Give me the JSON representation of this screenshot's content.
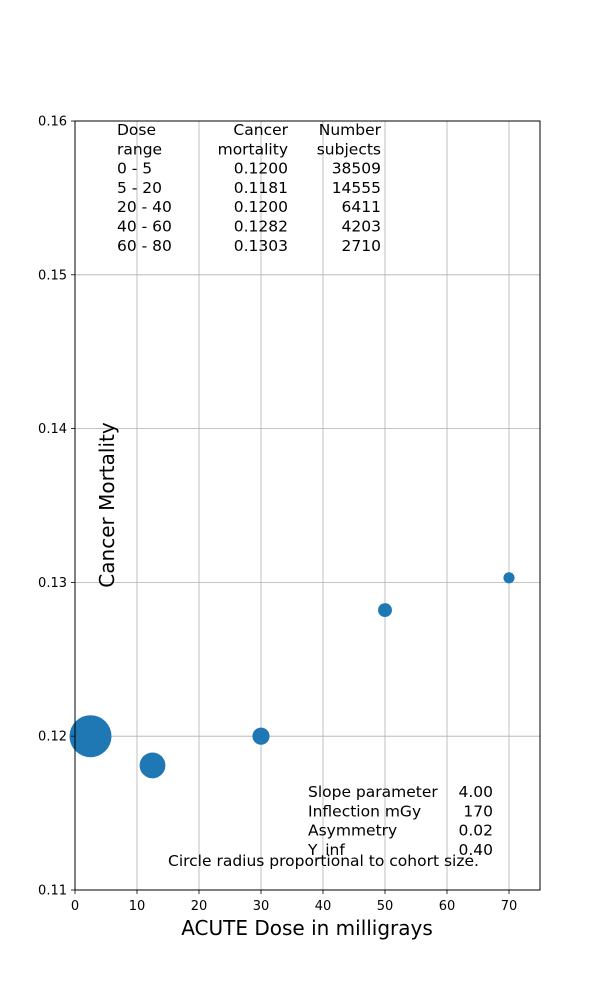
{
  "chart_data": {
    "type": "scatter",
    "title": "",
    "xlabel": "ACUTE Dose in milligrays",
    "ylabel": "Cancer Mortality",
    "xlim": [
      0,
      75
    ],
    "ylim": [
      0.11,
      0.16
    ],
    "xticks": [
      "0",
      "10",
      "20",
      "30",
      "40",
      "50",
      "60",
      "70"
    ],
    "xtick_values": [
      0,
      10,
      20,
      30,
      40,
      50,
      60,
      70
    ],
    "yticks": [
      "0.11",
      "0.12",
      "0.13",
      "0.14",
      "0.15",
      "0.16"
    ],
    "ytick_values": [
      0.11,
      0.12,
      0.13,
      0.14,
      0.15,
      0.16
    ],
    "grid": true,
    "marker_color": "#1f77b4",
    "points": [
      {
        "x": 2.5,
        "y": 0.12,
        "subjects": 38509
      },
      {
        "x": 12.5,
        "y": 0.1181,
        "subjects": 14555
      },
      {
        "x": 30,
        "y": 0.12,
        "subjects": 6411
      },
      {
        "x": 50,
        "y": 0.1282,
        "subjects": 4203
      },
      {
        "x": 70,
        "y": 0.1303,
        "subjects": 2710
      }
    ],
    "table": {
      "headers": [
        [
          "Dose",
          "range"
        ],
        [
          "Cancer",
          "mortality"
        ],
        [
          "Number",
          "subjects"
        ]
      ],
      "rows": [
        [
          "0 - 5",
          "0.1200",
          "38509"
        ],
        [
          "5 - 20",
          "0.1181",
          "14555"
        ],
        [
          "20 - 40",
          "0.1200",
          "6411"
        ],
        [
          "40 - 60",
          "0.1282",
          "4203"
        ],
        [
          "60 - 80",
          "0.1303",
          "2710"
        ]
      ]
    },
    "parameters": [
      {
        "label": "Slope parameter",
        "value": "4.00"
      },
      {
        "label": "Inflection mGy",
        "value": "170"
      },
      {
        "label": "Asymmetry",
        "value": "0.02"
      },
      {
        "label": "Y_inf",
        "value": "0.40"
      }
    ],
    "note": "Circle radius proportional to cohort size."
  }
}
